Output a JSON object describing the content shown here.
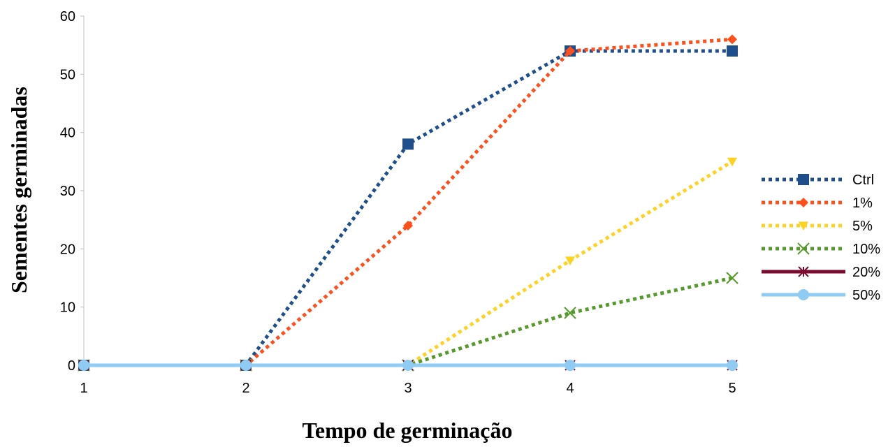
{
  "chart_data": {
    "type": "line",
    "title": "",
    "xlabel": "Tempo de germinação",
    "ylabel": "Sementes germinadas",
    "x": [
      1,
      2,
      3,
      4,
      5
    ],
    "xtick_labels": [
      "1",
      "2",
      "3",
      "4",
      "5"
    ],
    "ylim": [
      0,
      60
    ],
    "yticks": [
      0,
      10,
      20,
      30,
      40,
      50,
      60
    ],
    "grid": false,
    "legend_position": "right",
    "series": [
      {
        "name": "Ctrl",
        "values": [
          0,
          0,
          38,
          54,
          54
        ],
        "color": "#1f4e8c",
        "dash": "dotted",
        "marker": "square"
      },
      {
        "name": "1%",
        "values": [
          0,
          0,
          24,
          54,
          56
        ],
        "color": "#ff4f1a",
        "dash": "dotted",
        "marker": "diamond"
      },
      {
        "name": "5%",
        "values": [
          0,
          0,
          0,
          18,
          35
        ],
        "color": "#ffd21f",
        "dash": "dotted",
        "marker": "triangle-down"
      },
      {
        "name": "10%",
        "values": [
          0,
          0,
          0,
          9,
          15
        ],
        "color": "#559a2b",
        "dash": "dotted",
        "marker": "x"
      },
      {
        "name": "20%",
        "values": [
          0,
          0,
          0,
          0,
          0
        ],
        "color": "#7a0a2e",
        "dash": "solid",
        "marker": "star"
      },
      {
        "name": "50%",
        "values": [
          0,
          0,
          0,
          0,
          0
        ],
        "color": "#8fcbf2",
        "dash": "solid",
        "marker": "circle"
      }
    ]
  }
}
